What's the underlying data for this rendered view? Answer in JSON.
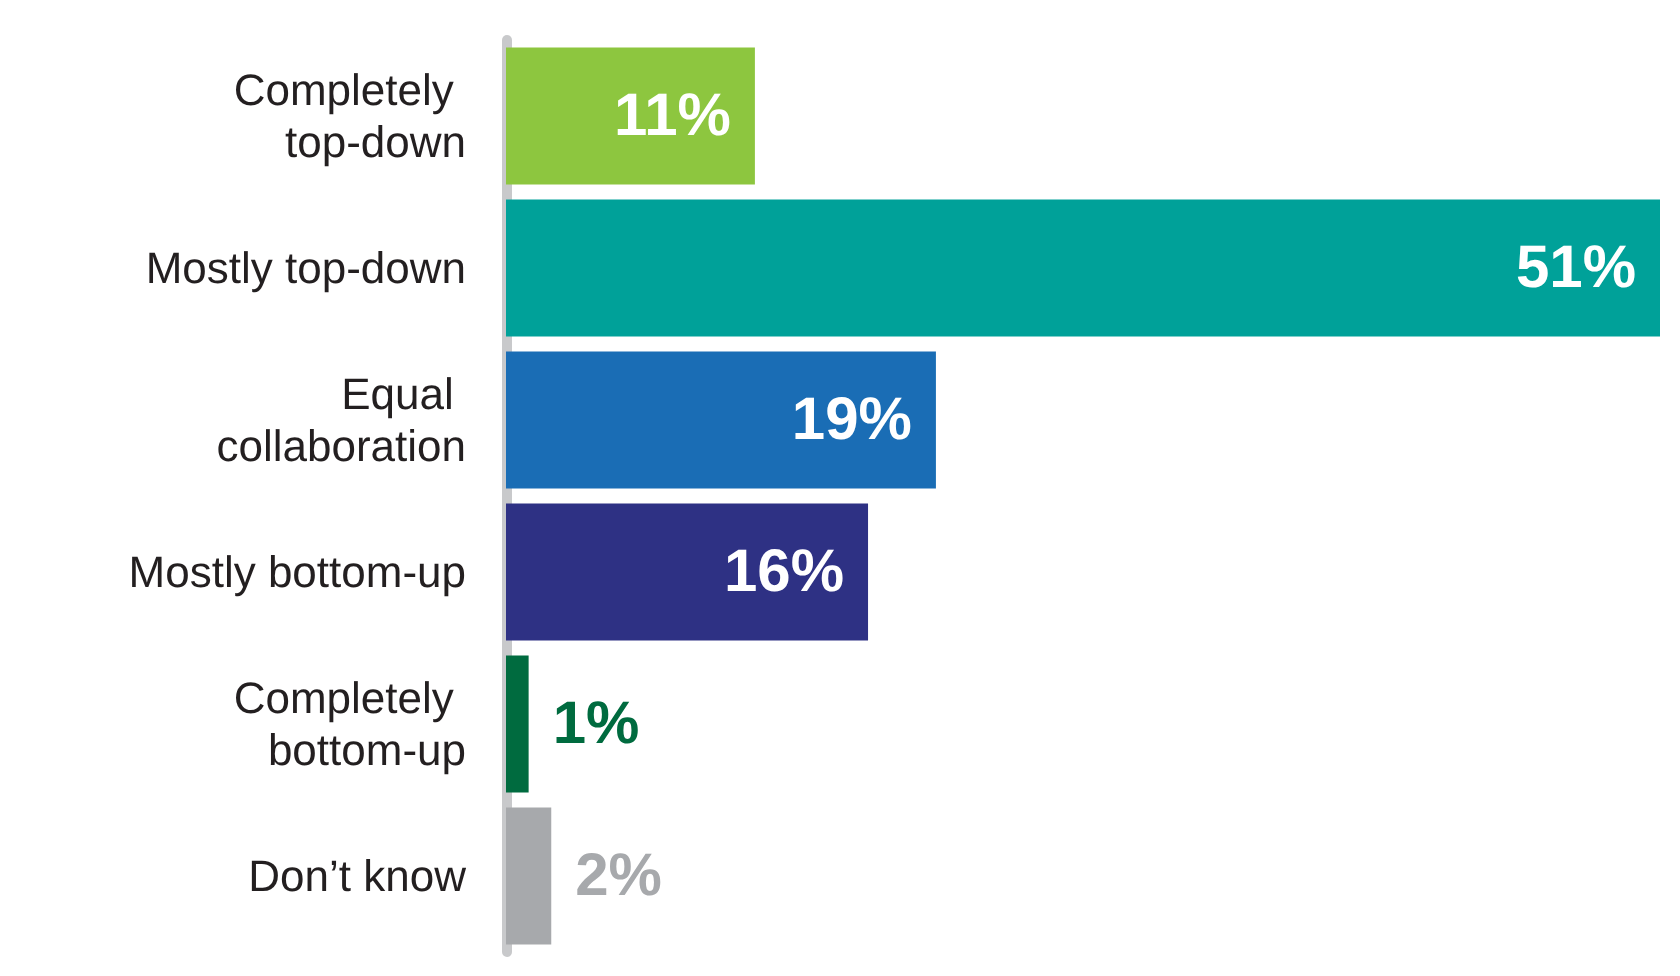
{
  "chart_data": {
    "type": "bar",
    "orientation": "horizontal",
    "categories": [
      "Completely top-down",
      "Mostly top-down",
      "Equal collaboration",
      "Mostly bottom-up",
      "Completely bottom-up",
      "Don’t know"
    ],
    "values": [
      11,
      51,
      19,
      16,
      1,
      2
    ],
    "colors": [
      "#8dc63f",
      "#00a199",
      "#1a6db5",
      "#2e3184",
      "#006b3f",
      "#a7a9ac"
    ],
    "value_labels": [
      "11%",
      "51%",
      "19%",
      "16%",
      "1%",
      "2%"
    ]
  }
}
